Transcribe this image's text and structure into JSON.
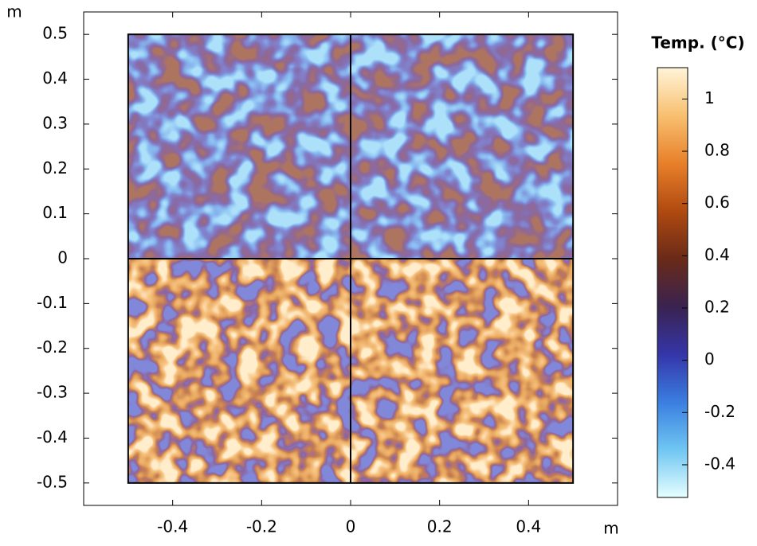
{
  "chart_data": {
    "type": "surface",
    "x_label": "m",
    "y_label": "m",
    "xlim": [
      -0.6,
      0.6
    ],
    "ylim": [
      -0.55,
      0.55
    ],
    "xticks": [
      -0.4,
      -0.2,
      0,
      0.2,
      0.4
    ],
    "yticks": [
      -0.5,
      -0.4,
      -0.3,
      -0.2,
      -0.1,
      0,
      0.1,
      0.2,
      0.3,
      0.4,
      0.5
    ],
    "domain_xlim": [
      -0.5,
      0.5
    ],
    "domain_ylim": [
      -0.5,
      0.5
    ],
    "colorbar": {
      "title": "Temp. (°C)",
      "lim": [
        -0.525,
        1.12
      ],
      "ticks": [
        -0.4,
        -0.2,
        0,
        0.2,
        0.4,
        0.6,
        0.8,
        1
      ],
      "colors": [
        "#e6ffff",
        "#6fc6f2",
        "#3a7ee0",
        "#3535a8",
        "#3a2350",
        "#6a2a18",
        "#b04a10",
        "#e8802a",
        "#f8c070",
        "#fff4d8"
      ]
    }
  }
}
